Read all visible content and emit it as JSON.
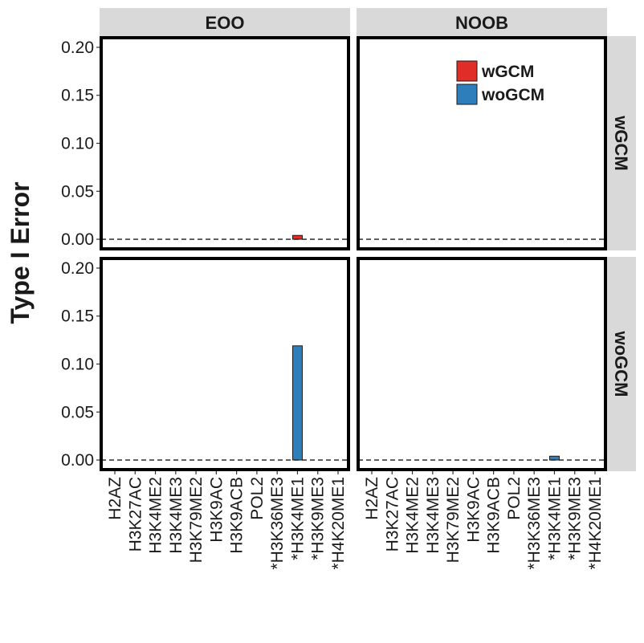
{
  "chart_data": {
    "type": "bar",
    "ylabel": "Type I Error",
    "xlabel": "",
    "ylim": [
      -0.01,
      0.21
    ],
    "yticks": [
      0.0,
      0.05,
      0.1,
      0.15,
      0.2
    ],
    "ytick_labels": [
      "0.00",
      "0.05",
      "0.10",
      "0.15",
      "0.20"
    ],
    "grid": false,
    "legend_position": "top-right",
    "facet_columns": [
      "EOO",
      "NOOB"
    ],
    "facet_rows": [
      "wGCM",
      "woGCM"
    ],
    "categories": [
      "H2AZ",
      "H3K27AC",
      "H3K4ME2",
      "H3K4ME3",
      "H3K79ME2",
      "H3K9AC",
      "H3K9ACB",
      "POL2",
      "*H3K36ME3",
      "*H3K4ME1",
      "*H3K9ME3",
      "*H4K20ME1"
    ],
    "series": [
      {
        "name": "wGCM",
        "color": "#e12d28"
      },
      {
        "name": "woGCM",
        "color": "#2f7ebc"
      }
    ],
    "panels": [
      {
        "column": "EOO",
        "row": "wGCM",
        "series": "wGCM",
        "values": [
          0,
          0,
          0,
          0,
          0,
          0,
          0,
          0,
          0,
          0.004,
          0,
          0
        ]
      },
      {
        "column": "NOOB",
        "row": "wGCM",
        "series": "wGCM",
        "values": [
          0,
          0,
          0,
          0,
          0,
          0,
          0,
          0,
          0,
          0,
          0,
          0
        ]
      },
      {
        "column": "EOO",
        "row": "woGCM",
        "series": "woGCM",
        "values": [
          0,
          0,
          0,
          0,
          0,
          0,
          0,
          0,
          0,
          0.119,
          0,
          0
        ]
      },
      {
        "column": "NOOB",
        "row": "woGCM",
        "series": "woGCM",
        "values": [
          0,
          0,
          0,
          0,
          0,
          0,
          0,
          0,
          0,
          0.004,
          0,
          0
        ]
      }
    ],
    "reference_line": 0
  }
}
